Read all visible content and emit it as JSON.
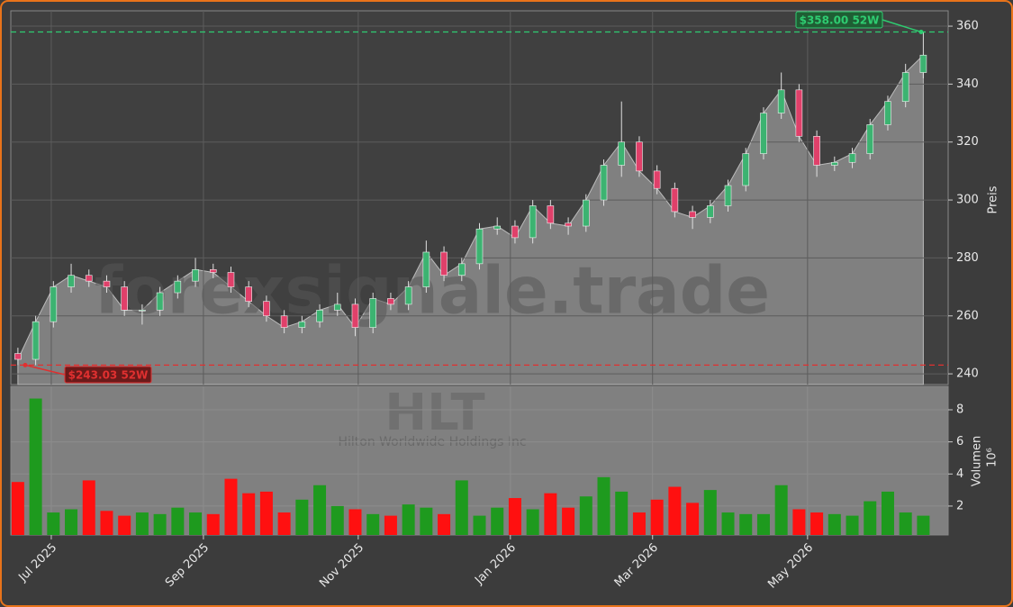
{
  "chart_data": {
    "type": "candlestick",
    "watermark": "forexsignale.trade",
    "ticker": "HLT",
    "company": "Hilton Worldwide Holdings Inc",
    "ylabel": "Preis",
    "categories": [
      null,
      null,
      null,
      null,
      null,
      null,
      null,
      null,
      null,
      null,
      null,
      null,
      null,
      null,
      null,
      null,
      null,
      null,
      null,
      null,
      null,
      null,
      null,
      null,
      null,
      null,
      null,
      null,
      null,
      null,
      null,
      null,
      null,
      null,
      null,
      null,
      null,
      null,
      null,
      null,
      null,
      null,
      null,
      null,
      null,
      null,
      null,
      null,
      null,
      null,
      null,
      null
    ],
    "xlim": [
      -0.4,
      52.4
    ],
    "xticks": [
      {
        "value": 1.88,
        "label": "Jul 2025"
      },
      {
        "value": 10.45,
        "label": "Sep 2025"
      },
      {
        "value": 19.17,
        "label": "Nov 2025"
      },
      {
        "value": 27.74,
        "label": "Jan 2026"
      },
      {
        "value": 35.75,
        "label": "Mar 2026"
      },
      {
        "value": 44.48,
        "label": "May 2026"
      }
    ],
    "open": [
      247,
      245,
      258,
      270,
      274,
      272,
      270,
      262,
      262,
      268,
      272,
      276,
      275,
      270,
      265,
      260,
      256,
      258,
      262,
      264,
      256,
      266,
      264,
      270,
      282,
      274,
      278,
      290,
      291,
      287,
      298,
      292,
      291,
      300,
      312,
      320,
      310,
      304,
      296,
      294,
      298,
      305,
      316,
      330,
      338,
      322,
      312,
      313,
      316,
      326,
      334,
      344
    ],
    "high": [
      249,
      260,
      272,
      278,
      276,
      274,
      272,
      264,
      270,
      274,
      280,
      278,
      277,
      272,
      267,
      262,
      260,
      264,
      268,
      266,
      268,
      268,
      272,
      286,
      284,
      280,
      292,
      294,
      293,
      300,
      300,
      294,
      302,
      314,
      334,
      322,
      312,
      306,
      298,
      300,
      307,
      318,
      332,
      344,
      340,
      324,
      315,
      318,
      328,
      336,
      347,
      358
    ],
    "low": [
      243.03,
      243,
      256,
      268,
      270,
      268,
      260,
      257,
      260,
      266,
      270,
      273,
      268,
      263,
      258,
      254,
      254,
      256,
      260,
      253,
      254,
      262,
      262,
      268,
      272,
      272,
      276,
      288,
      285,
      285,
      290,
      288,
      289,
      298,
      308,
      308,
      302,
      294,
      290,
      292,
      296,
      303,
      314,
      328,
      320,
      308,
      310,
      311,
      314,
      324,
      332,
      342
    ],
    "close": [
      245,
      258,
      270,
      274,
      272,
      270,
      262,
      262,
      268,
      272,
      276,
      275,
      270,
      265,
      260,
      256,
      258,
      262,
      264,
      256,
      266,
      264,
      270,
      282,
      274,
      278,
      290,
      291,
      287,
      298,
      292,
      291,
      300,
      312,
      320,
      310,
      304,
      296,
      294,
      298,
      305,
      316,
      330,
      338,
      322,
      312,
      313,
      316,
      326,
      334,
      344,
      350
    ],
    "up_color": "#3cb371",
    "down_color": "#e0406a",
    "area_color": "#808080",
    "ylim": [
      236.3,
      365.3
    ],
    "yticks": [
      240,
      260,
      280,
      300,
      320,
      340,
      360
    ],
    "grid": true,
    "annotations": [
      {
        "value": 358,
        "label": "$358.00 52W",
        "color": "#2ecc71"
      },
      {
        "value": 243.03,
        "label": "$243.03 52W",
        "color": "#e03030"
      }
    ],
    "volume": {
      "label": "Volumen",
      "unit": "10⁶",
      "values": [
        3.5,
        8.7,
        1.6,
        1.8,
        3.6,
        1.7,
        1.4,
        1.6,
        1.5,
        1.9,
        1.6,
        1.5,
        3.7,
        2.8,
        2.9,
        1.6,
        2.4,
        3.3,
        2.0,
        1.8,
        1.5,
        1.4,
        2.1,
        1.9,
        1.5,
        3.6,
        1.4,
        1.9,
        2.5,
        1.8,
        2.8,
        1.9,
        2.6,
        3.8,
        2.9,
        1.6,
        2.4,
        3.2,
        2.2,
        3.0,
        1.6,
        1.5,
        1.5,
        3.3,
        1.8,
        1.6,
        1.5,
        1.4,
        2.3,
        2.9,
        1.6,
        1.4
      ],
      "up_color": "#1e9a1e",
      "down_color": "#ff1010",
      "ylim": [
        0.2,
        9.46
      ],
      "yticks": [
        2,
        4,
        6,
        8
      ]
    }
  }
}
